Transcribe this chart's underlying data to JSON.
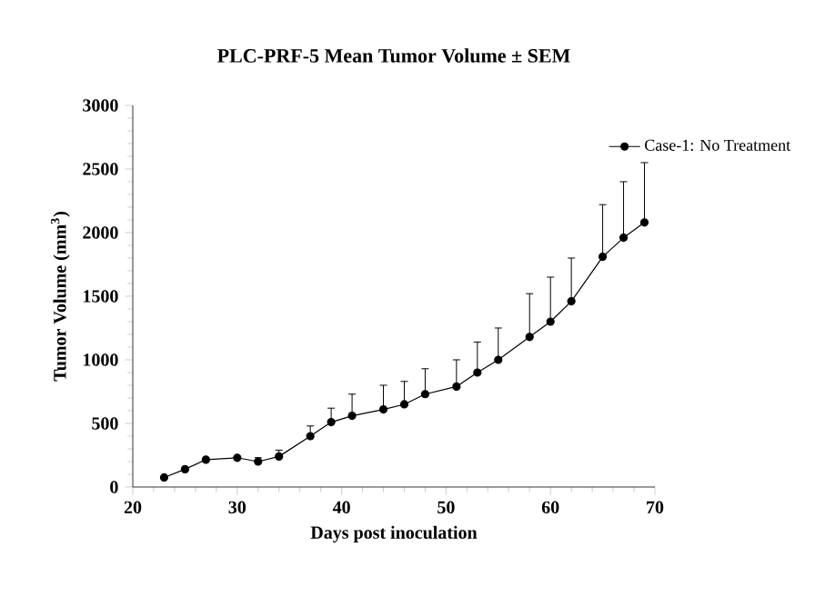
{
  "chart_data": {
    "type": "line",
    "title": "PLC-PRF-5 Mean Tumor Volume ± SEM",
    "xlabel": "Days post inoculation",
    "ylabel": "Tumor Volume (mm$^{3}$)",
    "xlim": [
      20,
      70
    ],
    "xticks": [
      20,
      30,
      40,
      50,
      60,
      70
    ],
    "ylim": [
      0,
      3000
    ],
    "yticks": [
      0,
      500,
      1000,
      1500,
      2000,
      2500,
      3000
    ],
    "legend": "top right",
    "marker": "circle",
    "grid": false,
    "series": [
      {
        "name": "Case-1: No Treatment",
        "color": "#000000",
        "x": [
          23,
          25,
          27,
          30,
          32,
          34,
          37,
          39,
          41,
          44,
          46,
          48,
          51,
          53,
          55,
          58,
          60,
          62,
          65,
          67,
          69
        ],
        "values": [
          75,
          140,
          215,
          230,
          200,
          240,
          400,
          510,
          560,
          610,
          650,
          730,
          790,
          900,
          1000,
          1180,
          1300,
          1460,
          1810,
          1960,
          2080
        ],
        "errors": [
          null,
          null,
          null,
          null,
          [
            200,
            230
          ],
          [
            240,
            290
          ],
          [
            400,
            480
          ],
          [
            510,
            620
          ],
          [
            560,
            730
          ],
          [
            610,
            800
          ],
          [
            650,
            830
          ],
          [
            730,
            930
          ],
          [
            790,
            1000
          ],
          [
            900,
            1140
          ],
          [
            1000,
            1250
          ],
          [
            1180,
            1520
          ],
          [
            1300,
            1650
          ],
          [
            1460,
            1800
          ],
          [
            1810,
            2220
          ],
          [
            1960,
            2400
          ],
          [
            2080,
            2550
          ]
        ]
      }
    ]
  }
}
